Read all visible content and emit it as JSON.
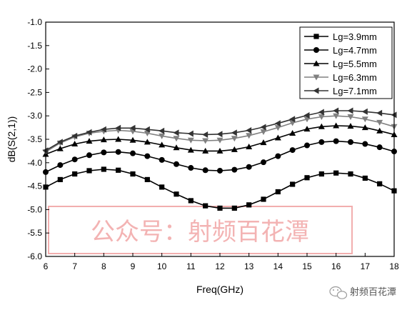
{
  "chart_data": {
    "type": "line",
    "xlabel": "Freq(GHz)",
    "ylabel": "dB(S(2,1))",
    "xlim": [
      6,
      18
    ],
    "ylim": [
      -6.0,
      -1.0
    ],
    "xticks": [
      "6",
      "7",
      "8",
      "9",
      "10",
      "11",
      "12",
      "13",
      "14",
      "15",
      "16",
      "17",
      "18"
    ],
    "yticks": [
      "-1.0",
      "-1.5",
      "-2.0",
      "-2.5",
      "-3.0",
      "-3.5",
      "-4.0",
      "-4.5",
      "-5.0",
      "-5.5",
      "-6.0"
    ],
    "grid": false,
    "legend_position": "top-right",
    "x": [
      6.0,
      6.5,
      7.0,
      7.5,
      8.0,
      8.5,
      9.0,
      9.5,
      10.0,
      10.5,
      11.0,
      11.5,
      12.0,
      12.5,
      13.0,
      13.5,
      14.0,
      14.5,
      15.0,
      15.5,
      16.0,
      16.5,
      17.0,
      17.5,
      18.0
    ],
    "series": [
      {
        "name": "Lg=3.9mm",
        "marker": "square",
        "color": "#000000",
        "values": [
          -4.52,
          -4.36,
          -4.24,
          -4.17,
          -4.14,
          -4.16,
          -4.24,
          -4.36,
          -4.52,
          -4.67,
          -4.81,
          -4.92,
          -4.97,
          -4.97,
          -4.9,
          -4.78,
          -4.62,
          -4.46,
          -4.32,
          -4.24,
          -4.22,
          -4.24,
          -4.33,
          -4.45,
          -4.6
        ]
      },
      {
        "name": "Lg=4.7mm",
        "marker": "circle",
        "color": "#000000",
        "values": [
          -4.2,
          -4.05,
          -3.93,
          -3.84,
          -3.78,
          -3.77,
          -3.8,
          -3.86,
          -3.94,
          -4.03,
          -4.11,
          -4.16,
          -4.17,
          -4.15,
          -4.09,
          -3.99,
          -3.86,
          -3.73,
          -3.63,
          -3.56,
          -3.54,
          -3.56,
          -3.6,
          -3.67,
          -3.76
        ]
      },
      {
        "name": "Lg=5.5mm",
        "marker": "triangle-up",
        "color": "#000000",
        "values": [
          -3.82,
          -3.7,
          -3.6,
          -3.54,
          -3.51,
          -3.5,
          -3.52,
          -3.56,
          -3.62,
          -3.68,
          -3.73,
          -3.75,
          -3.75,
          -3.72,
          -3.66,
          -3.57,
          -3.47,
          -3.37,
          -3.28,
          -3.23,
          -3.21,
          -3.22,
          -3.25,
          -3.32,
          -3.4
        ]
      },
      {
        "name": "Lg=6.3mm",
        "marker": "triangle-down",
        "color": "#808080",
        "values": [
          -3.77,
          -3.58,
          -3.45,
          -3.37,
          -3.33,
          -3.31,
          -3.33,
          -3.37,
          -3.43,
          -3.48,
          -3.52,
          -3.53,
          -3.52,
          -3.48,
          -3.42,
          -3.34,
          -3.25,
          -3.15,
          -3.07,
          -3.02,
          -3.0,
          -3.02,
          -3.07,
          -3.14,
          -3.23
        ]
      },
      {
        "name": "Lg=7.1mm",
        "marker": "triangle-left",
        "color": "#333333",
        "values": [
          -3.74,
          -3.56,
          -3.43,
          -3.35,
          -3.29,
          -3.26,
          -3.26,
          -3.29,
          -3.32,
          -3.36,
          -3.38,
          -3.4,
          -3.39,
          -3.36,
          -3.31,
          -3.24,
          -3.16,
          -3.07,
          -2.99,
          -2.92,
          -2.89,
          -2.89,
          -2.91,
          -2.94,
          -2.98
        ]
      }
    ]
  },
  "watermark": {
    "text": "公众号：射频百花潭",
    "color": "#ef9a9a"
  },
  "credit": {
    "text": "射频百花潭",
    "icon": "wechat-icon"
  }
}
